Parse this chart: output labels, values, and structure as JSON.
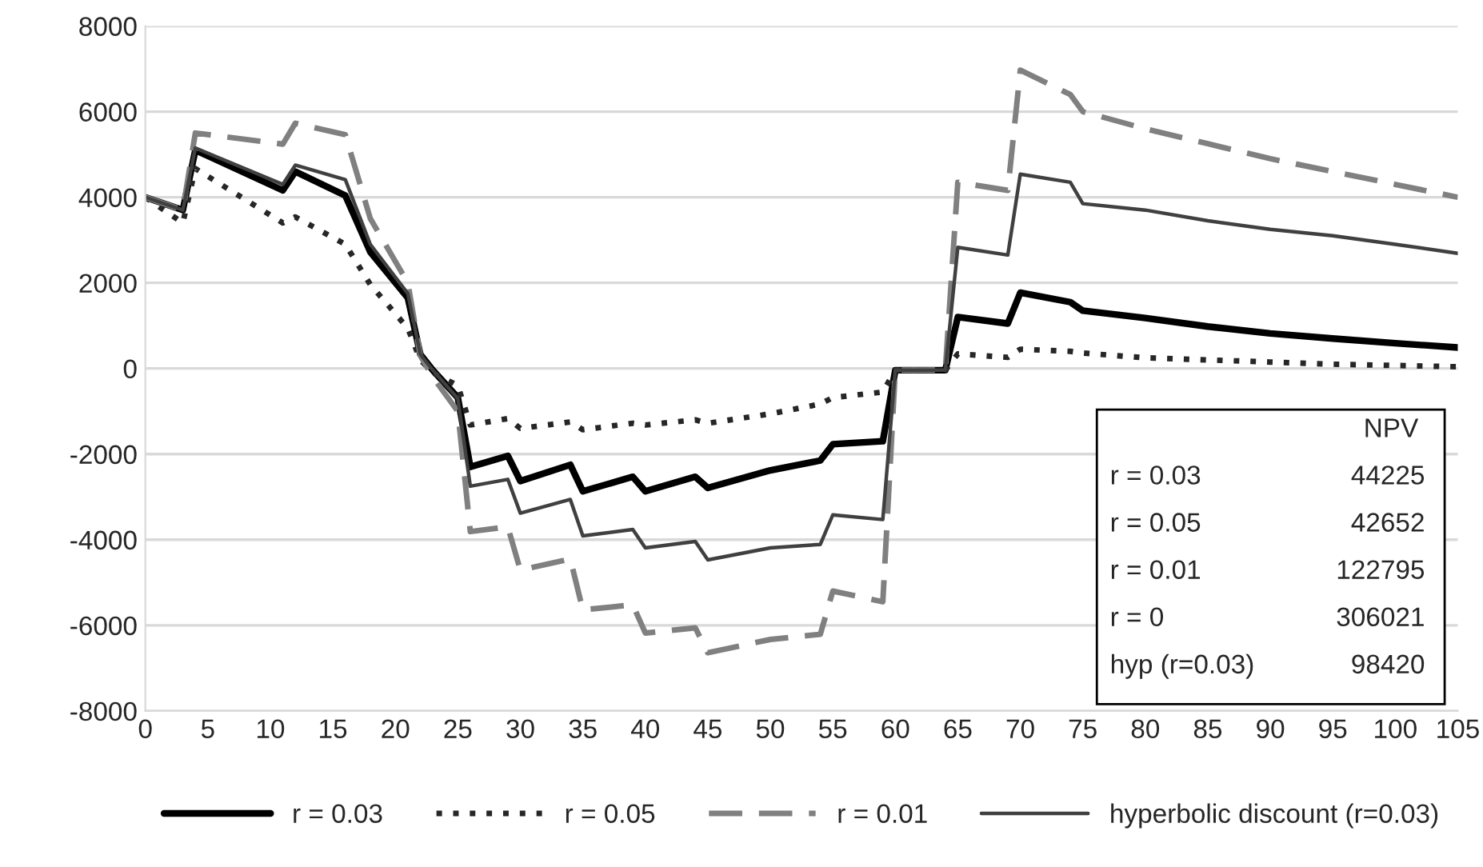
{
  "chart_data": {
    "type": "line",
    "x": [
      0,
      3,
      4,
      11,
      12,
      16,
      18,
      21,
      22,
      23,
      25,
      26,
      29,
      30,
      34,
      35,
      39,
      40,
      44,
      45,
      50,
      54,
      55,
      59,
      60,
      64,
      65,
      69,
      70,
      74,
      75,
      80,
      85,
      90,
      95,
      100,
      105
    ],
    "series": [
      {
        "name": "r = 0.03",
        "color": "#000000",
        "line_style": "solid",
        "values": [
          4000,
          3700,
          5100,
          4160,
          4600,
          4040,
          2720,
          1650,
          330,
          -40,
          -680,
          -2300,
          -2040,
          -2630,
          -2250,
          -2870,
          -2530,
          -2870,
          -2530,
          -2790,
          -2380,
          -2150,
          -1770,
          -1700,
          -40,
          -40,
          1200,
          1050,
          1770,
          1550,
          1350,
          1180,
          980,
          820,
          700,
          590,
          490
        ]
      },
      {
        "name": "r = 0.05",
        "color": "#262626",
        "line_style": "dotted",
        "values": [
          4000,
          3400,
          4670,
          3400,
          3540,
          2900,
          1960,
          940,
          200,
          -100,
          -400,
          -1320,
          -1170,
          -1400,
          -1250,
          -1430,
          -1280,
          -1320,
          -1200,
          -1280,
          -1060,
          -830,
          -680,
          -550,
          -40,
          -40,
          340,
          260,
          450,
          400,
          360,
          250,
          200,
          150,
          100,
          70,
          40
        ]
      },
      {
        "name": "r = 0.01",
        "color": "#808080",
        "line_style": "dashed",
        "values": [
          4000,
          3700,
          5500,
          5240,
          5730,
          5460,
          3500,
          2000,
          300,
          -200,
          -1000,
          -3810,
          -3700,
          -4710,
          -4450,
          -5640,
          -5520,
          -6180,
          -6060,
          -6640,
          -6330,
          -6210,
          -5200,
          -5450,
          -40,
          -40,
          4350,
          4160,
          6970,
          6400,
          6000,
          5600,
          5250,
          4900,
          4600,
          4300,
          4000
        ]
      },
      {
        "name": "hyperbolic discount (r=0.03)",
        "color": "#404040",
        "line_style": "solid",
        "values": [
          4000,
          3700,
          5150,
          4300,
          4750,
          4410,
          2900,
          1750,
          330,
          -40,
          -700,
          -2750,
          -2590,
          -3380,
          -3060,
          -3910,
          -3760,
          -4190,
          -4040,
          -4470,
          -4190,
          -4110,
          -3420,
          -3530,
          -40,
          -40,
          2830,
          2650,
          4540,
          4350,
          3850,
          3700,
          3450,
          3250,
          3100,
          2900,
          2690
        ]
      }
    ],
    "xlim": [
      0,
      105
    ],
    "xticks": [
      0,
      5,
      10,
      15,
      20,
      25,
      30,
      35,
      40,
      45,
      50,
      55,
      60,
      65,
      70,
      75,
      80,
      85,
      90,
      95,
      100,
      105
    ],
    "ylim": [
      -8000,
      8000
    ],
    "yticks": [
      -8000,
      -6000,
      -4000,
      -2000,
      0,
      2000,
      4000,
      6000,
      8000
    ],
    "grid": "y",
    "legend": "bottom",
    "annotations": [
      "NPV",
      "r = 0.03",
      "44225",
      "r = 0.05",
      "42652",
      "r = 0.01",
      "122795",
      "r = 0",
      "306021",
      "hyp (r=0.03)",
      "98420"
    ]
  }
}
